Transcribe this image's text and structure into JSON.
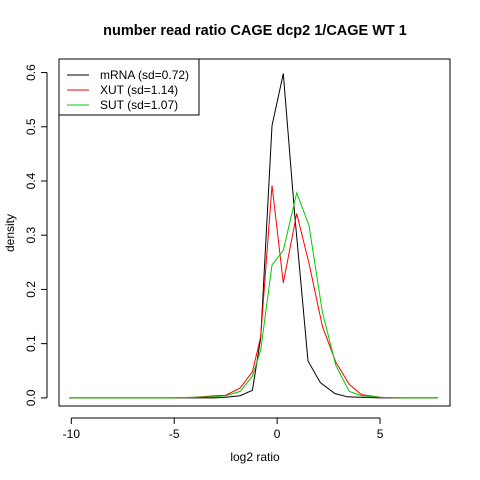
{
  "chart_data": {
    "type": "line",
    "title": "number read ratio CAGE dcp2 1/CAGE WT 1",
    "xlabel": "log2 ratio",
    "ylabel": "density",
    "xlim": [
      -10.6,
      8.4
    ],
    "ylim": [
      -0.015,
      0.625
    ],
    "x_ticks": [
      -10,
      -5,
      0,
      5
    ],
    "x_tick_labels": [
      "-10",
      "-5",
      "0",
      "5"
    ],
    "y_ticks": [
      0.0,
      0.1,
      0.2,
      0.3,
      0.4,
      0.5,
      0.6
    ],
    "y_tick_labels": [
      "0.0",
      "0.1",
      "0.2",
      "0.3",
      "0.4",
      "0.5",
      "0.6"
    ],
    "grid": false,
    "legend_position": "top-left",
    "series": [
      {
        "name": "mRNA (sd=0.72)",
        "color": "#000000",
        "x": [
          -10.1,
          -9.0,
          -8.0,
          -7.0,
          -6.0,
          -5.0,
          -4.0,
          -3.0,
          -2.5,
          -1.8,
          -1.2,
          -0.8,
          -0.25,
          0.3,
          0.85,
          1.5,
          2.1,
          2.8,
          3.4,
          4.0,
          5.0,
          6.0,
          7.0,
          7.8
        ],
        "y": [
          0.0,
          0.0,
          0.0,
          0.0,
          0.0,
          0.0,
          0.0,
          0.0,
          0.001,
          0.004,
          0.014,
          0.11,
          0.502,
          0.598,
          0.34,
          0.068,
          0.028,
          0.008,
          0.002,
          0.001,
          0.0,
          0.0,
          0.0,
          0.0
        ]
      },
      {
        "name": "XUT (sd=1.14)",
        "color": "#ff0000",
        "x": [
          -10.1,
          -9.0,
          -8.0,
          -7.0,
          -6.0,
          -5.0,
          -4.0,
          -3.0,
          -2.5,
          -1.8,
          -1.2,
          -0.8,
          -0.25,
          0.3,
          0.95,
          1.55,
          2.2,
          2.85,
          3.5,
          4.1,
          5.0,
          6.0,
          7.0,
          7.8
        ],
        "y": [
          0.0,
          0.0,
          0.0,
          0.0,
          0.0,
          0.0,
          0.001,
          0.004,
          0.005,
          0.018,
          0.048,
          0.113,
          0.392,
          0.212,
          0.34,
          0.248,
          0.132,
          0.066,
          0.025,
          0.006,
          0.001,
          0.0,
          0.0,
          0.0
        ]
      },
      {
        "name": "SUT (sd=1.07)",
        "color": "#00cc00",
        "x": [
          -10.1,
          -9.0,
          -8.0,
          -7.0,
          -6.0,
          -5.0,
          -4.0,
          -3.0,
          -2.5,
          -1.8,
          -1.2,
          -0.8,
          -0.25,
          0.3,
          0.95,
          1.55,
          2.2,
          2.85,
          3.5,
          4.1,
          5.0,
          6.0,
          7.0,
          7.8
        ],
        "y": [
          0.0,
          0.0,
          0.0,
          0.0,
          0.0,
          0.0,
          0.001,
          0.002,
          0.004,
          0.012,
          0.04,
          0.088,
          0.245,
          0.272,
          0.378,
          0.318,
          0.158,
          0.06,
          0.012,
          0.004,
          0.001,
          0.0,
          0.0,
          0.0
        ]
      }
    ]
  }
}
